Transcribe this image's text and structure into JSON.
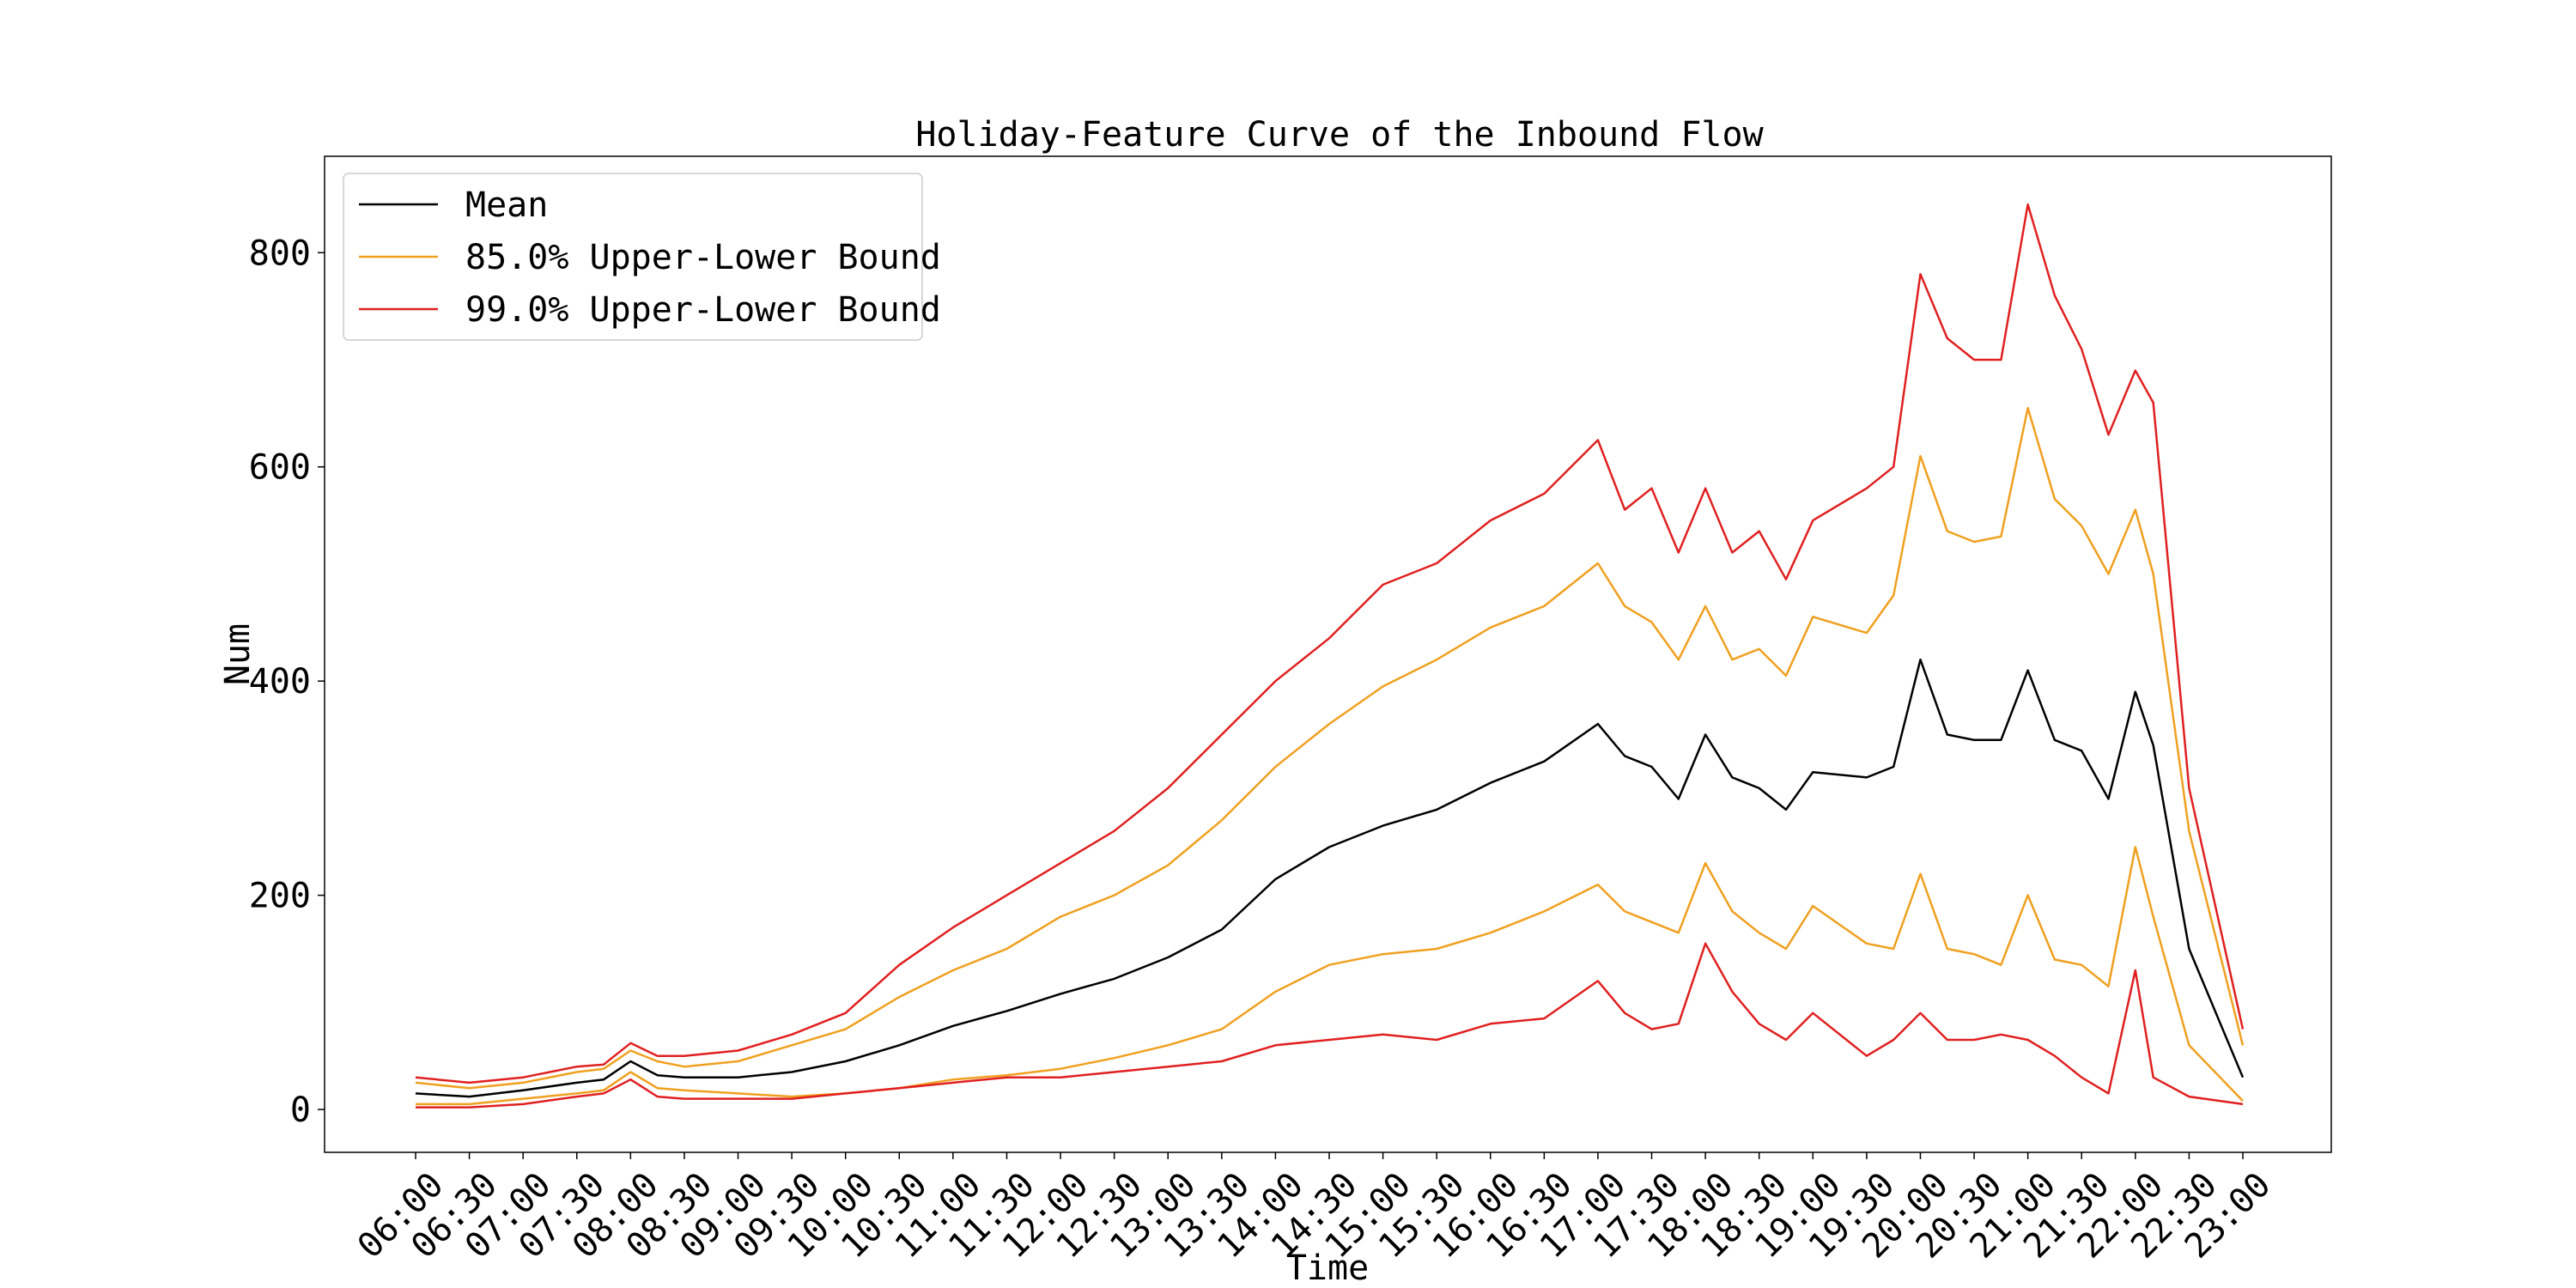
{
  "chart_data": {
    "type": "line",
    "title": "Holiday-Feature Curve of the Inbound Flow",
    "xlabel": "Time",
    "ylabel": "Num",
    "ylim": [
      -40,
      890
    ],
    "yticks": [
      0,
      200,
      400,
      600,
      800
    ],
    "xtick_labels": [
      "06:00",
      "06:30",
      "07:00",
      "07:30",
      "08:00",
      "08:30",
      "09:00",
      "09:30",
      "10:00",
      "10:30",
      "11:00",
      "11:30",
      "12:00",
      "12:30",
      "13:00",
      "13:30",
      "14:00",
      "14:30",
      "15:00",
      "15:30",
      "16:00",
      "16:30",
      "17:00",
      "17:30",
      "18:00",
      "18:30",
      "19:00",
      "19:30",
      "20:00",
      "20:30",
      "21:00",
      "21:30",
      "22:00",
      "22:30",
      "23:00"
    ],
    "legend": {
      "placement": "top-left",
      "entries": [
        {
          "key": "mean",
          "label": "Mean",
          "color": "#000000"
        },
        {
          "key": "b85",
          "label": "85.0% Upper-Lower Bound",
          "color": "#f0a020"
        },
        {
          "key": "b99",
          "label": "99.0% Upper-Lower Bound",
          "color": "#e02020"
        }
      ]
    },
    "series": [
      {
        "key": "mean",
        "color": "#000000",
        "points": [
          [
            "06:00",
            15
          ],
          [
            "06:30",
            12
          ],
          [
            "07:00",
            18
          ],
          [
            "07:30",
            25
          ],
          [
            "07:45",
            28
          ],
          [
            "08:00",
            45
          ],
          [
            "08:15",
            32
          ],
          [
            "08:30",
            30
          ],
          [
            "09:00",
            30
          ],
          [
            "09:30",
            35
          ],
          [
            "10:00",
            45
          ],
          [
            "10:30",
            60
          ],
          [
            "11:00",
            78
          ],
          [
            "11:30",
            92
          ],
          [
            "12:00",
            108
          ],
          [
            "12:30",
            122
          ],
          [
            "13:00",
            142
          ],
          [
            "13:30",
            168
          ],
          [
            "14:00",
            215
          ],
          [
            "14:30",
            245
          ],
          [
            "15:00",
            265
          ],
          [
            "15:30",
            280
          ],
          [
            "16:00",
            305
          ],
          [
            "16:30",
            325
          ],
          [
            "17:00",
            360
          ],
          [
            "17:15",
            330
          ],
          [
            "17:30",
            320
          ],
          [
            "17:45",
            290
          ],
          [
            "18:00",
            350
          ],
          [
            "18:15",
            310
          ],
          [
            "18:30",
            300
          ],
          [
            "18:45",
            280
          ],
          [
            "19:00",
            315
          ],
          [
            "19:30",
            310
          ],
          [
            "19:45",
            320
          ],
          [
            "20:00",
            420
          ],
          [
            "20:15",
            350
          ],
          [
            "20:30",
            345
          ],
          [
            "20:45",
            345
          ],
          [
            "21:00",
            410
          ],
          [
            "21:15",
            345
          ],
          [
            "21:30",
            335
          ],
          [
            "21:45",
            290
          ],
          [
            "22:00",
            390
          ],
          [
            "22:10",
            340
          ],
          [
            "22:30",
            150
          ],
          [
            "23:00",
            30
          ]
        ]
      },
      {
        "key": "b85_upper",
        "color": "#f0a020",
        "points": [
          [
            "06:00",
            25
          ],
          [
            "06:30",
            20
          ],
          [
            "07:00",
            25
          ],
          [
            "07:30",
            35
          ],
          [
            "07:45",
            38
          ],
          [
            "08:00",
            55
          ],
          [
            "08:15",
            45
          ],
          [
            "08:30",
            40
          ],
          [
            "09:00",
            45
          ],
          [
            "09:30",
            60
          ],
          [
            "10:00",
            75
          ],
          [
            "10:30",
            105
          ],
          [
            "11:00",
            130
          ],
          [
            "11:30",
            150
          ],
          [
            "12:00",
            180
          ],
          [
            "12:30",
            200
          ],
          [
            "13:00",
            228
          ],
          [
            "13:30",
            270
          ],
          [
            "14:00",
            320
          ],
          [
            "14:30",
            360
          ],
          [
            "15:00",
            395
          ],
          [
            "15:30",
            420
          ],
          [
            "16:00",
            450
          ],
          [
            "16:30",
            470
          ],
          [
            "17:00",
            510
          ],
          [
            "17:15",
            470
          ],
          [
            "17:30",
            455
          ],
          [
            "17:45",
            420
          ],
          [
            "18:00",
            470
          ],
          [
            "18:15",
            420
          ],
          [
            "18:30",
            430
          ],
          [
            "18:45",
            405
          ],
          [
            "19:00",
            460
          ],
          [
            "19:30",
            445
          ],
          [
            "19:45",
            480
          ],
          [
            "20:00",
            610
          ],
          [
            "20:15",
            540
          ],
          [
            "20:30",
            530
          ],
          [
            "20:45",
            535
          ],
          [
            "21:00",
            655
          ],
          [
            "21:15",
            570
          ],
          [
            "21:30",
            545
          ],
          [
            "21:45",
            500
          ],
          [
            "22:00",
            560
          ],
          [
            "22:10",
            500
          ],
          [
            "22:30",
            260
          ],
          [
            "23:00",
            60
          ]
        ]
      },
      {
        "key": "b85_lower",
        "color": "#f0a020",
        "points": [
          [
            "06:00",
            5
          ],
          [
            "06:30",
            5
          ],
          [
            "07:00",
            10
          ],
          [
            "07:30",
            15
          ],
          [
            "07:45",
            18
          ],
          [
            "08:00",
            35
          ],
          [
            "08:15",
            20
          ],
          [
            "08:30",
            18
          ],
          [
            "09:00",
            15
          ],
          [
            "09:30",
            12
          ],
          [
            "10:00",
            15
          ],
          [
            "10:30",
            20
          ],
          [
            "11:00",
            28
          ],
          [
            "11:30",
            32
          ],
          [
            "12:00",
            38
          ],
          [
            "12:30",
            48
          ],
          [
            "13:00",
            60
          ],
          [
            "13:30",
            75
          ],
          [
            "14:00",
            110
          ],
          [
            "14:30",
            135
          ],
          [
            "15:00",
            145
          ],
          [
            "15:30",
            150
          ],
          [
            "16:00",
            165
          ],
          [
            "16:30",
            185
          ],
          [
            "17:00",
            210
          ],
          [
            "17:15",
            185
          ],
          [
            "17:30",
            175
          ],
          [
            "17:45",
            165
          ],
          [
            "18:00",
            230
          ],
          [
            "18:15",
            185
          ],
          [
            "18:30",
            165
          ],
          [
            "18:45",
            150
          ],
          [
            "19:00",
            190
          ],
          [
            "19:30",
            155
          ],
          [
            "19:45",
            150
          ],
          [
            "20:00",
            220
          ],
          [
            "20:15",
            150
          ],
          [
            "20:30",
            145
          ],
          [
            "20:45",
            135
          ],
          [
            "21:00",
            200
          ],
          [
            "21:15",
            140
          ],
          [
            "21:30",
            135
          ],
          [
            "21:45",
            115
          ],
          [
            "22:00",
            245
          ],
          [
            "22:10",
            180
          ],
          [
            "22:30",
            60
          ],
          [
            "23:00",
            8
          ]
        ]
      },
      {
        "key": "b99_upper",
        "color": "#e02020",
        "points": [
          [
            "06:00",
            30
          ],
          [
            "06:30",
            25
          ],
          [
            "07:00",
            30
          ],
          [
            "07:30",
            40
          ],
          [
            "07:45",
            42
          ],
          [
            "08:00",
            62
          ],
          [
            "08:15",
            50
          ],
          [
            "08:30",
            50
          ],
          [
            "09:00",
            55
          ],
          [
            "09:30",
            70
          ],
          [
            "10:00",
            90
          ],
          [
            "10:30",
            135
          ],
          [
            "11:00",
            170
          ],
          [
            "11:30",
            200
          ],
          [
            "12:00",
            230
          ],
          [
            "12:30",
            260
          ],
          [
            "13:00",
            300
          ],
          [
            "13:30",
            350
          ],
          [
            "14:00",
            400
          ],
          [
            "14:30",
            440
          ],
          [
            "15:00",
            490
          ],
          [
            "15:30",
            510
          ],
          [
            "16:00",
            550
          ],
          [
            "16:30",
            575
          ],
          [
            "17:00",
            625
          ],
          [
            "17:15",
            560
          ],
          [
            "17:30",
            580
          ],
          [
            "17:45",
            520
          ],
          [
            "18:00",
            580
          ],
          [
            "18:15",
            520
          ],
          [
            "18:30",
            540
          ],
          [
            "18:45",
            495
          ],
          [
            "19:00",
            550
          ],
          [
            "19:30",
            580
          ],
          [
            "19:45",
            600
          ],
          [
            "20:00",
            780
          ],
          [
            "20:15",
            720
          ],
          [
            "20:30",
            700
          ],
          [
            "20:45",
            700
          ],
          [
            "21:00",
            845
          ],
          [
            "21:15",
            760
          ],
          [
            "21:30",
            710
          ],
          [
            "21:45",
            630
          ],
          [
            "22:00",
            690
          ],
          [
            "22:10",
            660
          ],
          [
            "22:30",
            300
          ],
          [
            "23:00",
            75
          ]
        ]
      },
      {
        "key": "b99_lower",
        "color": "#e02020",
        "points": [
          [
            "06:00",
            2
          ],
          [
            "06:30",
            2
          ],
          [
            "07:00",
            5
          ],
          [
            "07:30",
            12
          ],
          [
            "07:45",
            15
          ],
          [
            "08:00",
            28
          ],
          [
            "08:15",
            12
          ],
          [
            "08:30",
            10
          ],
          [
            "09:00",
            10
          ],
          [
            "09:30",
            10
          ],
          [
            "10:00",
            15
          ],
          [
            "10:30",
            20
          ],
          [
            "11:00",
            25
          ],
          [
            "11:30",
            30
          ],
          [
            "12:00",
            30
          ],
          [
            "12:30",
            35
          ],
          [
            "13:00",
            40
          ],
          [
            "13:30",
            45
          ],
          [
            "14:00",
            60
          ],
          [
            "14:30",
            65
          ],
          [
            "15:00",
            70
          ],
          [
            "15:30",
            65
          ],
          [
            "16:00",
            80
          ],
          [
            "16:30",
            85
          ],
          [
            "17:00",
            120
          ],
          [
            "17:15",
            90
          ],
          [
            "17:30",
            75
          ],
          [
            "17:45",
            80
          ],
          [
            "18:00",
            155
          ],
          [
            "18:15",
            110
          ],
          [
            "18:30",
            80
          ],
          [
            "18:45",
            65
          ],
          [
            "19:00",
            90
          ],
          [
            "19:30",
            50
          ],
          [
            "19:45",
            65
          ],
          [
            "20:00",
            90
          ],
          [
            "20:15",
            65
          ],
          [
            "20:30",
            65
          ],
          [
            "20:45",
            70
          ],
          [
            "21:00",
            65
          ],
          [
            "21:15",
            50
          ],
          [
            "21:30",
            30
          ],
          [
            "21:45",
            15
          ],
          [
            "22:00",
            130
          ],
          [
            "22:10",
            30
          ],
          [
            "22:30",
            12
          ],
          [
            "23:00",
            5
          ]
        ]
      }
    ]
  }
}
